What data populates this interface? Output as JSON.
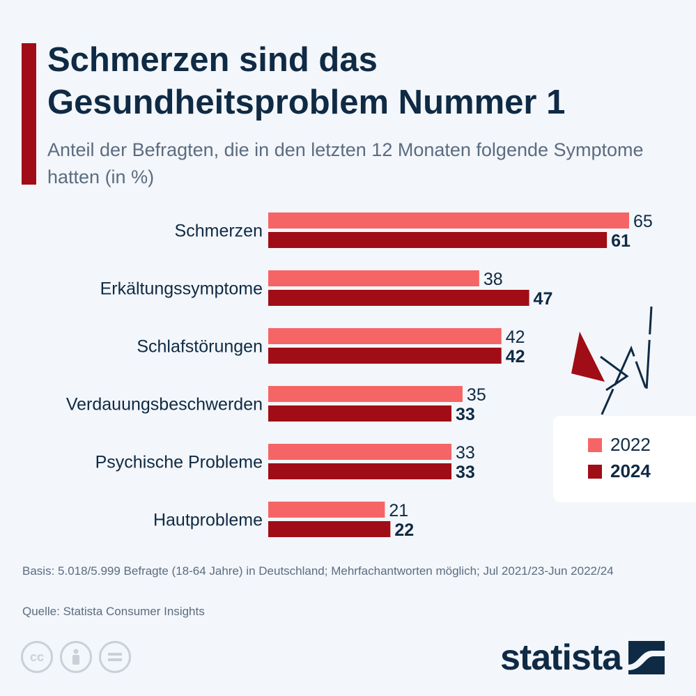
{
  "title": "Schmerzen sind das Gesundheitsproblem Nummer 1",
  "subtitle": "Anteil der Befragten, die in den letzten 12 Monaten folgende Symptome hatten (in %)",
  "chart_data": {
    "type": "bar",
    "orientation": "horizontal",
    "categories": [
      "Schmerzen",
      "Erkältungssymptome",
      "Schlafstörungen",
      "Verdauungsbeschwerden",
      "Psychische Probleme",
      "Hautprobleme"
    ],
    "series": [
      {
        "name": "2022",
        "values": [
          65,
          38,
          42,
          35,
          33,
          21
        ],
        "color": "#f56565"
      },
      {
        "name": "2024",
        "values": [
          61,
          47,
          42,
          33,
          33,
          22
        ],
        "color": "#a00d16"
      }
    ],
    "xlim": [
      0,
      65
    ],
    "legend_position": "right",
    "grid": false
  },
  "legend": {
    "label_2022": "2022",
    "label_2024": "2024"
  },
  "footer": {
    "basis": "Basis: 5.018/5.999 Befragte (18-64 Jahre) in Deutschland; Mehrfachantworten möglich; Jul 2021/23-Jun 2022/24",
    "source": "Quelle: Statista Consumer Insights"
  },
  "icons": [
    "cc-icon",
    "person-icon",
    "equals-icon",
    "lightning-icon"
  ],
  "logo": {
    "text": "statista"
  }
}
